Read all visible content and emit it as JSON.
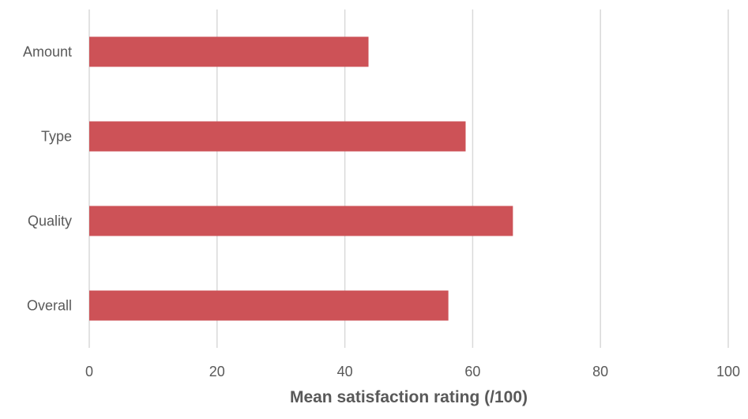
{
  "chart_data": {
    "type": "bar",
    "orientation": "horizontal",
    "categories": [
      "Amount",
      "Type",
      "Quality",
      "Overall"
    ],
    "values": [
      43.7,
      58.9,
      66.3,
      56.2
    ],
    "xlabel": "Mean satisfaction rating (/100)",
    "ylabel": "",
    "xlim": [
      0,
      100
    ],
    "xticks": [
      "0",
      "20",
      "40",
      "60",
      "80",
      "100"
    ],
    "grid": "vertical",
    "legend": "none",
    "bar_color": "#cd5257",
    "grid_color": "#d9d9d9",
    "text_color": "#595959"
  }
}
